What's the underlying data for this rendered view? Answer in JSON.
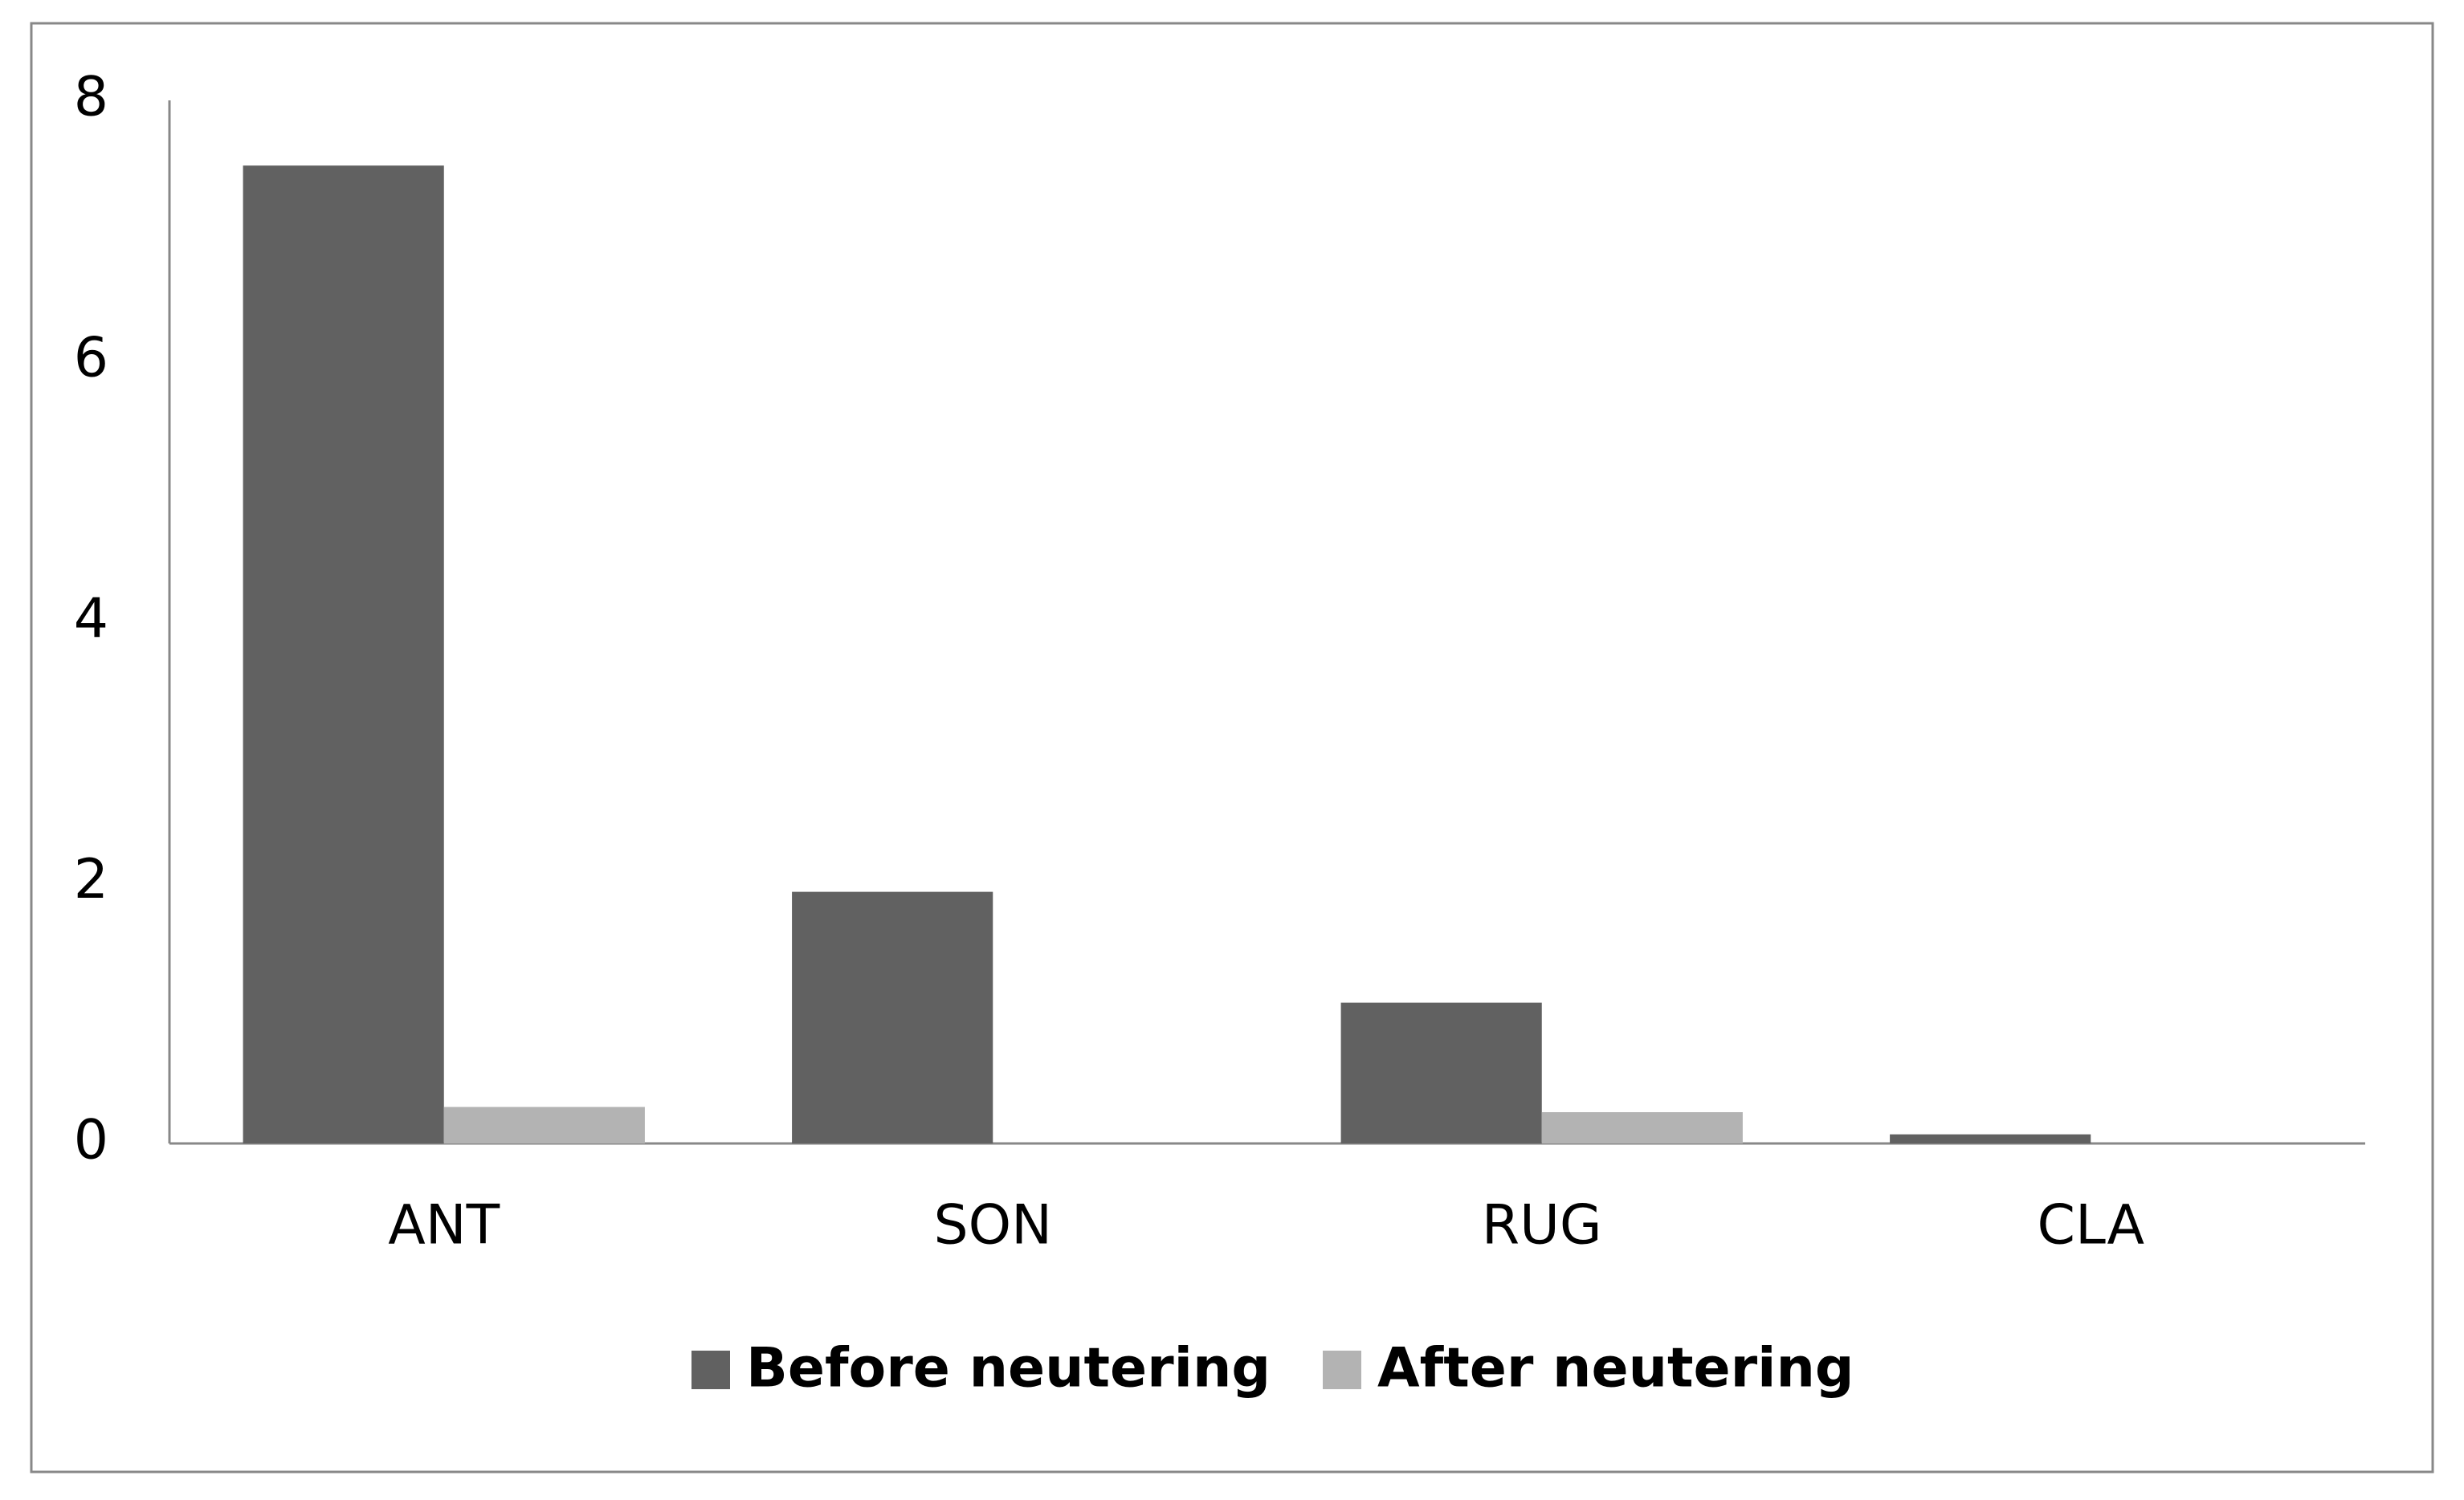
{
  "chart_data": {
    "type": "bar",
    "categories": [
      "ANT",
      "SON",
      "RUG",
      "CLA"
    ],
    "series": [
      {
        "name": "Before neutering",
        "color": "#616161",
        "values": [
          7.5,
          1.93,
          1.08,
          0.07
        ]
      },
      {
        "name": "After neutering",
        "color": "#b3b3b3",
        "values": [
          0.28,
          0,
          0.24,
          0
        ]
      }
    ],
    "ylim": [
      0,
      8
    ],
    "yticks": [
      0,
      2,
      4,
      6,
      8
    ],
    "grid": false,
    "legend": "bottom"
  }
}
